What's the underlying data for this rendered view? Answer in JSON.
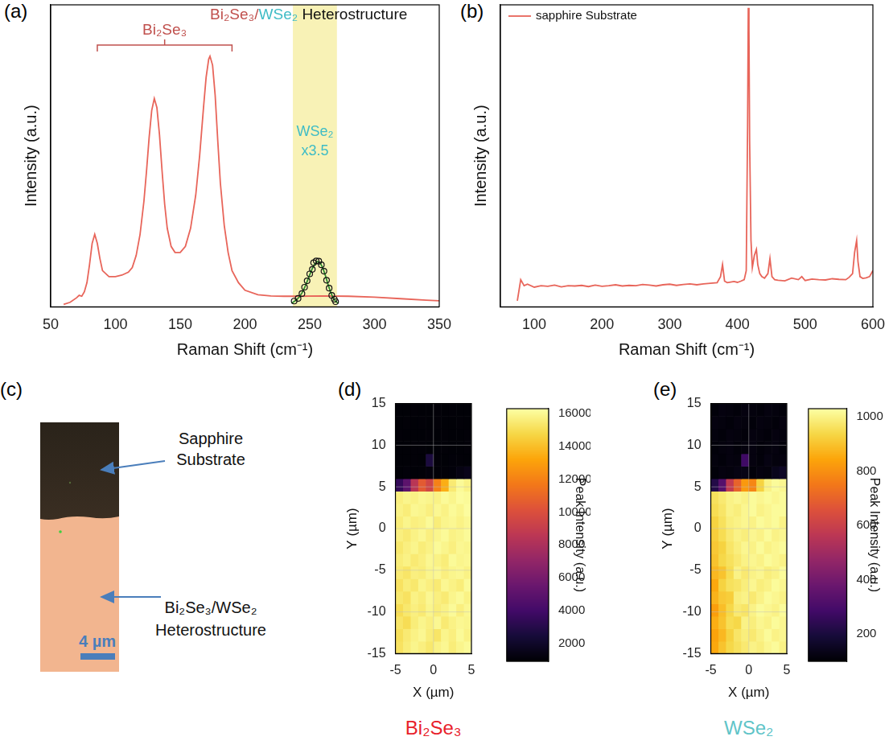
{
  "chart_data": [
    {
      "type": "line",
      "panel": "(a)",
      "heading": [
        {
          "text": "Bi₂Se₃/",
          "color": "#c0504d"
        },
        {
          "text": "WSe₂",
          "color": "#3fbcc6"
        },
        {
          "text": " Heterostructure",
          "color": "#111111"
        }
      ],
      "bracket": {
        "text": "Bi₂Se₃",
        "x": [
          86,
          190
        ],
        "color": "#c0504d"
      },
      "highlight": {
        "x": [
          237,
          271
        ],
        "color": "#f8f2b6"
      },
      "highlight_text": {
        "text": [
          "WSe₂",
          "x3.5"
        ],
        "color": "#3fbcc6"
      },
      "x_label": "Raman Shift (cm⁻¹)",
      "y_label": "Intensity (a.u.)",
      "xlim": [
        50,
        350
      ],
      "xticks": [
        50,
        100,
        150,
        200,
        250,
        300,
        350
      ],
      "ylim": [
        0,
        100
      ],
      "tick_labels": "x",
      "grid": false,
      "series": [
        {
          "color": "#e8655a",
          "marker": "none",
          "line_style": "solid",
          "x": [
            60,
            65,
            70,
            72,
            74,
            76,
            78,
            80,
            82,
            84,
            86,
            88,
            90,
            95,
            100,
            105,
            110,
            113,
            116,
            119,
            122,
            124,
            126,
            128,
            130,
            132,
            134,
            136,
            138,
            140,
            143,
            146,
            150,
            154,
            158,
            162,
            165,
            168,
            170,
            172,
            173,
            175,
            177,
            179,
            181,
            184,
            187,
            190,
            195,
            200,
            210,
            220,
            230,
            240,
            260,
            280,
            300,
            320,
            340,
            350
          ],
          "values": [
            0.8,
            1.5,
            3,
            3.8,
            3.5,
            5,
            8,
            14,
            21,
            24,
            21,
            16,
            12,
            10,
            10,
            10.5,
            11.5,
            13,
            17,
            24,
            35,
            45,
            56,
            65,
            69,
            66,
            57,
            45,
            34,
            26,
            20,
            18,
            18,
            20,
            26,
            37,
            50,
            66,
            76,
            82,
            83,
            80,
            70,
            55,
            41,
            27,
            18,
            12,
            8,
            5.5,
            4,
            3.6,
            3.5,
            3.5,
            3.6,
            3.5,
            3.2,
            2.7,
            2.2,
            2
          ]
        },
        {
          "color": "#111111",
          "marker": "circle",
          "line_style": "none",
          "x": [
            238,
            241,
            244,
            246,
            248,
            250,
            252,
            253,
            255,
            257,
            259,
            261,
            263,
            265,
            267,
            269,
            270
          ],
          "values": [
            1.9,
            2.8,
            4.4,
            6.5,
            8.6,
            10.9,
            12.4,
            14.6,
            15.2,
            15.1,
            13.9,
            11.8,
            8.8,
            6.2,
            3.8,
            2.5,
            1.7
          ]
        },
        {
          "color": "#2e8b2e",
          "marker": "none",
          "line_style": "solid",
          "x": [
            236,
            238,
            240,
            242,
            244,
            246,
            248,
            250,
            252,
            254,
            256,
            258,
            260,
            262,
            264,
            266,
            268,
            270,
            272
          ],
          "values": [
            1.2,
            1.8,
            2.4,
            3.3,
            4.6,
            6.3,
            8.4,
            10.6,
            12.7,
            14.3,
            15,
            14.6,
            13,
            10.5,
            7.6,
            5,
            3,
            1.8,
            1.2
          ]
        }
      ]
    },
    {
      "type": "line",
      "panel": "(b)",
      "x_label": "Raman Shift (cm⁻¹)",
      "y_label": "Intensity (a.u.)",
      "xlim": [
        50,
        600
      ],
      "xticks": [
        100,
        200,
        300,
        400,
        500,
        600
      ],
      "ylim": [
        0,
        100
      ],
      "tick_labels": "x",
      "grid": false,
      "legend": "top-left",
      "series": [
        {
          "name": "sapphire Substrate",
          "color": "#e8655a",
          "marker": "none",
          "line_style": "solid",
          "x": [
            75,
            80,
            85,
            90,
            100,
            110,
            120,
            130,
            140,
            150,
            160,
            170,
            180,
            190,
            200,
            210,
            220,
            230,
            240,
            250,
            260,
            270,
            280,
            290,
            300,
            310,
            320,
            330,
            340,
            350,
            360,
            370,
            375,
            378,
            381,
            385,
            390,
            395,
            400,
            405,
            410,
            413,
            415,
            416,
            417,
            418,
            420,
            422,
            425,
            428,
            430,
            433,
            436,
            440,
            445,
            448,
            451,
            455,
            460,
            470,
            480,
            490,
            495,
            500,
            510,
            520,
            530,
            540,
            550,
            560,
            565,
            570,
            573,
            576,
            578,
            581,
            585,
            590,
            595,
            600
          ],
          "values": [
            2,
            9,
            7,
            7.5,
            6.5,
            7,
            6.8,
            7.2,
            6.6,
            7,
            6.9,
            7.1,
            6.7,
            7.2,
            6.8,
            7,
            7.3,
            6.9,
            7.1,
            7,
            7.4,
            7.2,
            6.9,
            7.3,
            7.5,
            7.1,
            7.4,
            7.6,
            7.3,
            7.6,
            7.8,
            8,
            10,
            14,
            8.5,
            8,
            8.2,
            8.4,
            8.1,
            8.5,
            9,
            12,
            60,
            99,
            92,
            55,
            22,
            13,
            17,
            19,
            14,
            11,
            10,
            9.5,
            11,
            16,
            10,
            9,
            8.8,
            8.6,
            9.5,
            9,
            10,
            8.7,
            9.2,
            9,
            8.9,
            9.3,
            9.1,
            9,
            9.8,
            11,
            18,
            22,
            15,
            10,
            9.4,
            9.6,
            10,
            12
          ]
        }
      ]
    },
    {
      "type": "heatmap",
      "panel": "(d)",
      "x_label": "X (µm)",
      "y_label": "Y (µm)",
      "xlim": [
        -5,
        5
      ],
      "xticks": [
        -5,
        0,
        5
      ],
      "ylim": [
        -15,
        15
      ],
      "yticks": [
        -15,
        -10,
        -5,
        0,
        5,
        10,
        15
      ],
      "grid": true,
      "x_edges": [
        -5,
        -4,
        -3,
        -2,
        -1,
        0,
        1,
        2,
        3,
        4,
        5
      ],
      "y_edges": [
        -15,
        -13.5,
        -12,
        -10.5,
        -9,
        -7.5,
        -6,
        -4.5,
        -3,
        -1.5,
        0,
        1.5,
        3,
        4.5,
        6,
        7.5,
        9,
        10.5,
        12,
        13.5,
        15
      ],
      "cells": [
        [
          15200,
          15600,
          15900,
          15700,
          15400,
          15800,
          16000,
          15600,
          15900,
          16100
        ],
        [
          15100,
          15500,
          15800,
          16000,
          15600,
          15300,
          15900,
          15700,
          16100,
          15800
        ],
        [
          15300,
          15000,
          15600,
          15900,
          15700,
          16000,
          15500,
          15800,
          16000,
          15900
        ],
        [
          15000,
          15400,
          15700,
          15500,
          15900,
          15600,
          15800,
          16100,
          15700,
          16000
        ],
        [
          15400,
          15200,
          15800,
          15600,
          16000,
          15700,
          15500,
          15900,
          16100,
          15800
        ],
        [
          15200,
          15600,
          15400,
          15900,
          15700,
          15500,
          16000,
          15800,
          15600,
          16100
        ],
        [
          15500,
          15300,
          15700,
          15600,
          15900,
          16000,
          15700,
          15900,
          16000,
          15800
        ],
        [
          15600,
          15800,
          15500,
          15700,
          16000,
          15800,
          15600,
          16100,
          15900,
          16000
        ],
        [
          15400,
          15700,
          15900,
          15600,
          15800,
          16100,
          15900,
          15700,
          16000,
          15900
        ],
        [
          15700,
          15500,
          15800,
          16000,
          15700,
          15900,
          16100,
          15800,
          15900,
          16100
        ],
        [
          15600,
          15900,
          15700,
          15800,
          16100,
          15600,
          15900,
          16000,
          15800,
          16000
        ],
        [
          15800,
          15600,
          16000,
          15900,
          15700,
          16000,
          15800,
          16100,
          15900,
          16200
        ],
        [
          15700,
          15900,
          15800,
          16000,
          15900,
          15800,
          16100,
          15900,
          16200,
          16100
        ],
        [
          3500,
          5000,
          8500,
          10500,
          9500,
          12000,
          13500,
          15500,
          16100,
          15800
        ],
        [
          1000,
          1050,
          980,
          1020,
          1100,
          1000,
          1030,
          1060,
          1300,
          1500
        ],
        [
          980,
          1000,
          1020,
          1000,
          2600,
          1010,
          990,
          1040,
          1020,
          1000
        ],
        [
          1000,
          990,
          1010,
          1030,
          1000,
          980,
          1020,
          1000,
          990,
          1010
        ],
        [
          1010,
          1000,
          990,
          1000,
          1020,
          1000,
          1010,
          990,
          1000,
          1020
        ],
        [
          990,
          1010,
          1000,
          1020,
          1000,
          1010,
          990,
          1000,
          1020,
          1000
        ],
        [
          1000,
          990,
          1010,
          1000,
          990,
          1020,
          1000,
          1010,
          1000,
          990
        ]
      ],
      "colorbar": {
        "title": "Peak Intensity (a.u.)",
        "lim": [
          900,
          16300
        ],
        "ticks": [
          2000,
          4000,
          6000,
          8000,
          10000,
          12000,
          14000,
          16000
        ]
      },
      "caption": {
        "text": "Bi₂Se₃",
        "color": "#e8202a"
      }
    },
    {
      "type": "heatmap",
      "panel": "(e)",
      "x_label": "X (µm)",
      "y_label": "Y (µm)",
      "xlim": [
        -5,
        5
      ],
      "xticks": [
        -5,
        0,
        5
      ],
      "ylim": [
        -15,
        15
      ],
      "yticks": [
        -15,
        -10,
        -5,
        0,
        5,
        10,
        15
      ],
      "grid": true,
      "x_edges": [
        -5,
        -4,
        -3,
        -2,
        -1,
        0,
        1,
        2,
        3,
        4,
        5
      ],
      "y_edges": [
        -15,
        -13.5,
        -12,
        -10.5,
        -9,
        -7.5,
        -6,
        -4.5,
        -3,
        -1.5,
        0,
        1.5,
        3,
        4.5,
        6,
        7.5,
        9,
        10.5,
        12,
        13.5,
        15
      ],
      "cells": [
        [
          850,
          900,
          940,
          960,
          980,
          1000,
          990,
          1010,
          1020,
          1000
        ],
        [
          840,
          880,
          930,
          970,
          990,
          980,
          1000,
          1020,
          1000,
          1010
        ],
        [
          860,
          900,
          950,
          940,
          1000,
          990,
          1010,
          1000,
          1020,
          1010
        ],
        [
          830,
          890,
          940,
          980,
          970,
          1000,
          1020,
          1010,
          1000,
          1020
        ],
        [
          870,
          910,
          920,
          990,
          1000,
          980,
          1000,
          1020,
          1010,
          1000
        ],
        [
          850,
          930,
          960,
          970,
          990,
          1010,
          990,
          1000,
          1020,
          1010
        ],
        [
          880,
          900,
          950,
          1000,
          980,
          1000,
          1010,
          990,
          1000,
          1020
        ],
        [
          900,
          940,
          960,
          980,
          1000,
          1010,
          1000,
          1020,
          1010,
          1000
        ],
        [
          910,
          930,
          970,
          990,
          1010,
          1000,
          1020,
          1000,
          1010,
          1020
        ],
        [
          920,
          950,
          980,
          1000,
          990,
          1010,
          1000,
          1020,
          1000,
          1010
        ],
        [
          930,
          960,
          990,
          1000,
          1010,
          1000,
          1020,
          1010,
          1020,
          1000
        ],
        [
          950,
          970,
          1000,
          990,
          1010,
          1020,
          1000,
          1010,
          1020,
          1020
        ],
        [
          960,
          980,
          1000,
          1010,
          1000,
          1020,
          1010,
          1020,
          1010,
          1020
        ],
        [
          220,
          330,
          580,
          700,
          820,
          780,
          930,
          1000,
          1020,
          1010
        ],
        [
          110,
          120,
          115,
          125,
          130,
          110,
          120,
          115,
          140,
          160
        ],
        [
          115,
          110,
          120,
          115,
          280,
          120,
          110,
          125,
          115,
          120
        ],
        [
          110,
          115,
          120,
          110,
          115,
          120,
          110,
          115,
          120,
          110
        ],
        [
          115,
          110,
          120,
          115,
          110,
          120,
          115,
          110,
          120,
          115
        ],
        [
          120,
          115,
          110,
          120,
          115,
          110,
          120,
          115,
          110,
          120
        ],
        [
          110,
          120,
          115,
          110,
          120,
          115,
          110,
          120,
          115,
          110
        ]
      ],
      "colorbar": {
        "title": "Peak Intensity (a.u.)",
        "lim": [
          100,
          1030
        ],
        "ticks": [
          200,
          400,
          600,
          800,
          1000
        ]
      },
      "caption": {
        "text": "WSe₂",
        "color": "#5fc4c8"
      }
    }
  ],
  "image_panel": {
    "panel": "(c)",
    "labels": [
      {
        "text": "Sapphire Substrate"
      },
      {
        "text": "Bi₂Se₃/WSe₂ Heterostructure"
      }
    ],
    "scale_bar": "4 µm"
  }
}
